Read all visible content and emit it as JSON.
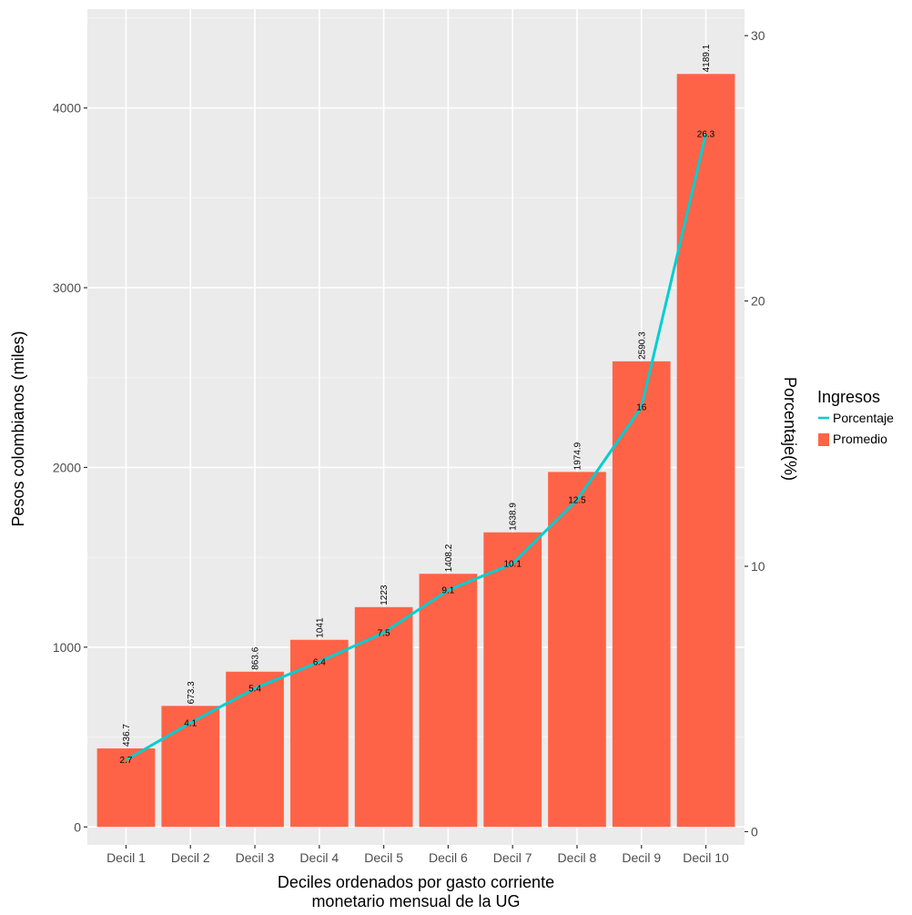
{
  "chart_data": {
    "type": "bar",
    "categories": [
      "Decil 1",
      "Decil 2",
      "Decil 3",
      "Decil 4",
      "Decil 5",
      "Decil 6",
      "Decil 7",
      "Decil 8",
      "Decil 9",
      "Decil 10"
    ],
    "series": [
      {
        "name": "Promedio",
        "kind": "bar",
        "axis": "left",
        "values": [
          436.7,
          673.3,
          863.6,
          1041,
          1223,
          1408.2,
          1638.9,
          1974.9,
          2590.3,
          4189.1
        ],
        "labels": [
          "436.7",
          "673.3",
          "863.6",
          "1041",
          "1223",
          "1408.2",
          "1638.9",
          "1974.9",
          "2590.3",
          "4189.1"
        ],
        "color": "#FF6347"
      },
      {
        "name": "Porcentaje",
        "kind": "line",
        "axis": "right",
        "values": [
          2.7,
          4.1,
          5.4,
          6.4,
          7.5,
          9.1,
          10.1,
          12.5,
          16,
          26.3
        ],
        "labels": [
          "2.7",
          "4.1",
          "5.4",
          "6.4",
          "7.5",
          "9.1",
          "10.1",
          "12.5",
          "16",
          "26.3"
        ],
        "color": "#00CED1"
      }
    ],
    "xlabel_line1": "Deciles ordenados por gasto corriente",
    "xlabel_line2": "monetario mensual de la UG",
    "ylabel": "Pesos colombianos (miles)",
    "ylabel_right": "Porcentaje(%)",
    "ylim": [
      -100,
      4550
    ],
    "yticks": [
      0,
      1000,
      2000,
      3000,
      4000
    ],
    "ytick_labels": [
      "0",
      "1000",
      "2000",
      "3000",
      "4000"
    ],
    "ylim_right": [
      -0.5,
      31
    ],
    "yticks_right": [
      0,
      10,
      20,
      30
    ],
    "ytick_labels_right": [
      "0",
      "10",
      "20",
      "30"
    ],
    "grid": true,
    "panel_background": "#EBEBEB",
    "legend": {
      "title": "Ingresos",
      "placement": "right",
      "entries": [
        "Porcentaje",
        "Promedio"
      ]
    }
  }
}
